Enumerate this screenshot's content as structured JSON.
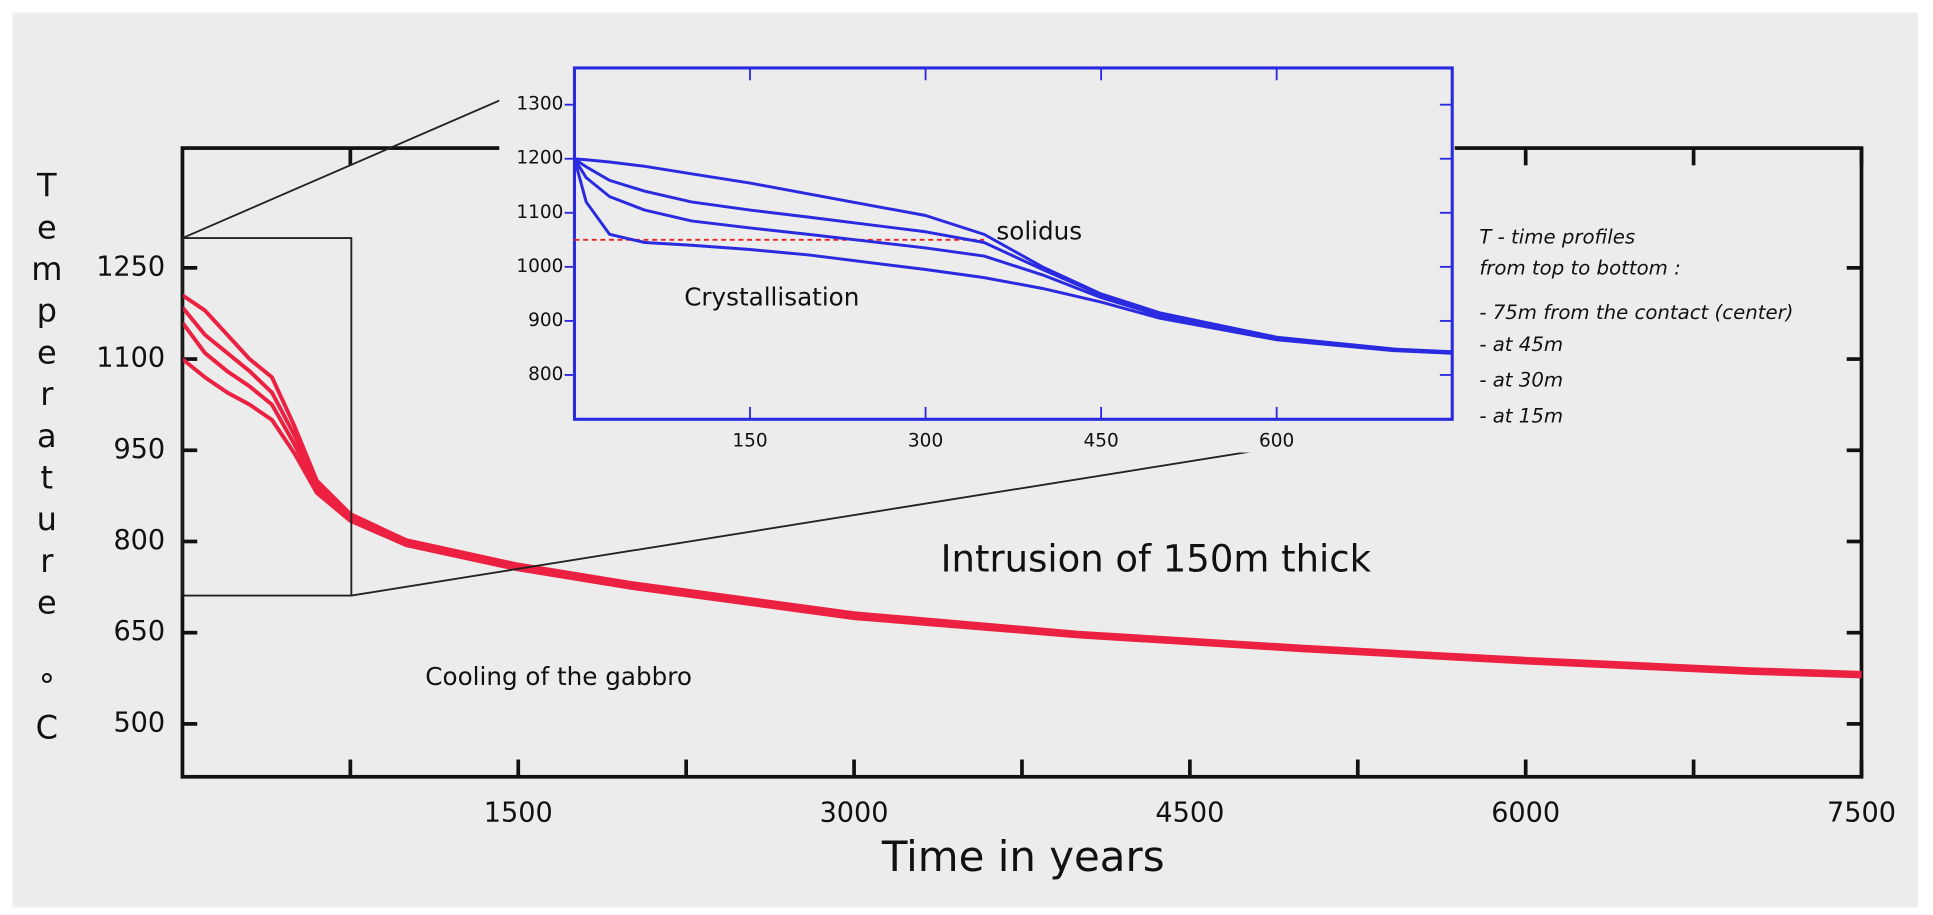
{
  "chart_data": [
    {
      "type": "line",
      "xlabel": "Time in years",
      "ylabel": "Temperature °C",
      "annotations": [
        "Intrusion of 150m thick",
        "Cooling of the gabbro"
      ],
      "notes": [
        "T - time profiles",
        "from top to bottom :",
        "- 75m from the contact (center)",
        "- at 45m",
        "- at 30m",
        "- at 15m"
      ],
      "x": [
        0,
        100,
        200,
        300,
        400,
        500,
        600,
        750,
        1000,
        1500,
        2000,
        3000,
        4000,
        5000,
        6000,
        7000,
        7500
      ],
      "color": "#ec2040",
      "series": [
        {
          "values": [
            1205,
            1180,
            1140,
            1100,
            1070,
            990,
            900,
            845,
            802,
            762,
            732,
            682,
            650,
            627,
            607,
            590,
            584
          ]
        },
        {
          "values": [
            1185,
            1140,
            1110,
            1080,
            1045,
            975,
            895,
            842,
            800,
            760,
            730,
            680,
            648,
            625,
            605,
            588,
            582
          ]
        },
        {
          "values": [
            1160,
            1110,
            1080,
            1055,
            1025,
            960,
            888,
            838,
            797,
            757,
            727,
            677,
            646,
            623,
            603,
            586,
            580
          ]
        },
        {
          "values": [
            1100,
            1070,
            1045,
            1025,
            1000,
            945,
            880,
            834,
            794,
            754,
            724,
            674,
            644,
            621,
            601,
            584,
            578
          ]
        }
      ],
      "xlim": [
        0,
        7500
      ],
      "xticks": [
        1500,
        3000,
        4500,
        6000,
        7500
      ],
      "xminorticks": [
        750,
        2250,
        3750,
        5250,
        6750
      ],
      "ylim": [
        413,
        1447
      ],
      "yticks": [
        500,
        650,
        800,
        950,
        1100,
        1250
      ]
    },
    {
      "type": "line",
      "annotations": [
        "Crystallisation"
      ],
      "x": [
        0,
        10,
        30,
        60,
        100,
        150,
        200,
        300,
        350,
        400,
        450,
        500,
        600,
        700,
        750
      ],
      "color": "#2a2ae0",
      "series": [
        {
          "values": [
            1200,
            1198,
            1194,
            1186,
            1172,
            1155,
            1135,
            1095,
            1060,
            1000,
            950,
            915,
            870,
            848,
            843
          ]
        },
        {
          "values": [
            1200,
            1185,
            1160,
            1140,
            1120,
            1105,
            1092,
            1065,
            1045,
            995,
            948,
            912,
            868,
            847,
            842
          ]
        },
        {
          "values": [
            1200,
            1165,
            1130,
            1105,
            1085,
            1072,
            1060,
            1035,
            1020,
            985,
            943,
            910,
            867,
            846,
            841
          ]
        },
        {
          "values": [
            1200,
            1120,
            1060,
            1045,
            1040,
            1032,
            1022,
            995,
            980,
            960,
            935,
            905,
            865,
            845,
            840
          ]
        }
      ],
      "reference_lines": [
        {
          "y": 1050,
          "x": [
            0,
            350
          ],
          "color": "#ee2222",
          "label": "solidus"
        }
      ],
      "xlim": [
        0,
        750
      ],
      "xticks": [
        150,
        300,
        450,
        600
      ],
      "ylim": [
        718,
        1368
      ],
      "yticks": [
        800,
        900,
        1000,
        1100,
        1200,
        1300
      ]
    }
  ]
}
